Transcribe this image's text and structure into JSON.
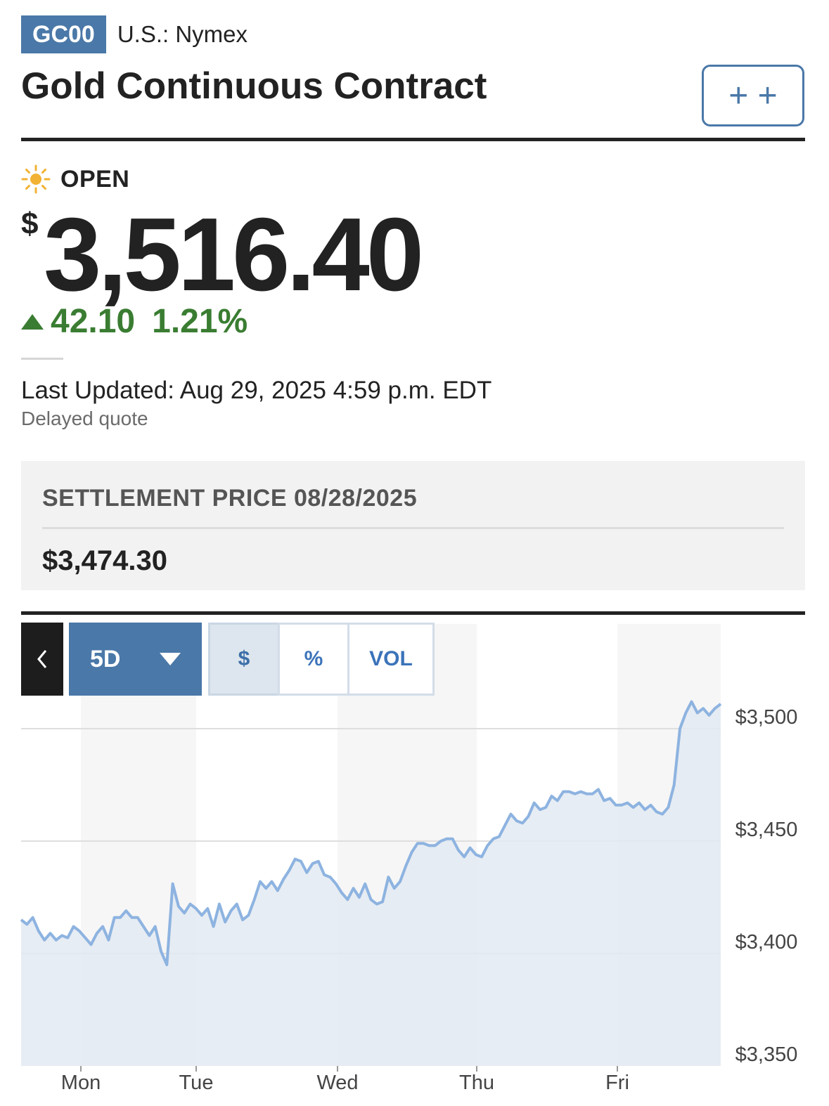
{
  "header": {
    "ticker": "GC00",
    "exchange": "U.S.: Nymex",
    "title": "Gold Continuous Contract",
    "watch_label": "+ +"
  },
  "status": {
    "label": "OPEN",
    "icon": "sun-icon"
  },
  "quote": {
    "currency": "$",
    "price": "3,516.40",
    "change": "42.10",
    "change_pct": "1.21%",
    "direction": "up"
  },
  "updated": {
    "text": "Last Updated: Aug 29, 2025 4:59 p.m. EDT",
    "note": "Delayed quote"
  },
  "settlement": {
    "label": "SETTLEMENT PRICE 08/28/2025",
    "value": "$3,474.30"
  },
  "chart_controls": {
    "back_icon": "chevron-left-icon",
    "range": "5D",
    "toggles": [
      "$",
      "%",
      "VOL"
    ],
    "active_toggle": "$"
  },
  "colors": {
    "accent": "#4a78a8",
    "up": "#3a7d32",
    "line": "#8db3e0",
    "area": "#e3eaf2"
  },
  "chart_data": {
    "type": "area",
    "x_labels": [
      "Mon",
      "Tue",
      "Wed",
      "Thu",
      "Fri"
    ],
    "y_ticks": [
      3500,
      3450,
      3400,
      3350
    ],
    "y_tick_labels": [
      "$3,500",
      "$3,450",
      "$3,400",
      "$3,350"
    ],
    "ylim": [
      3350,
      3515
    ],
    "grid": true,
    "series": [
      {
        "values": [
          3415,
          3413,
          3416,
          3410,
          3406,
          3409,
          3406,
          3408,
          3407,
          3412,
          3410,
          3407,
          3404,
          3409,
          3412,
          3406,
          3416,
          3416,
          3419,
          3416,
          3416,
          3412,
          3408,
          3412,
          3401,
          3395,
          3431,
          3421,
          3418,
          3422,
          3420,
          3417,
          3420,
          3412,
          3422,
          3414,
          3419,
          3422,
          3415,
          3417,
          3424,
          3432,
          3429,
          3432,
          3428,
          3433,
          3437,
          3442,
          3441,
          3436,
          3440,
          3441,
          3435,
          3434,
          3431,
          3427,
          3424,
          3429,
          3425,
          3431,
          3424,
          3422,
          3423,
          3434,
          3429,
          3432,
          3439,
          3445,
          3449,
          3449,
          3448,
          3448,
          3450,
          3451,
          3451,
          3446,
          3443,
          3447,
          3444,
          3443,
          3448,
          3451,
          3452,
          3457,
          3462,
          3459,
          3458,
          3461,
          3467,
          3464,
          3465,
          3470,
          3468,
          3472,
          3472,
          3471,
          3472,
          3471,
          3471,
          3473,
          3468,
          3469,
          3466,
          3466,
          3467,
          3465,
          3467,
          3464,
          3466,
          3463,
          3462,
          3465,
          3475,
          3500,
          3507,
          3512,
          3507,
          3509,
          3506,
          3509,
          3511
        ]
      }
    ]
  }
}
